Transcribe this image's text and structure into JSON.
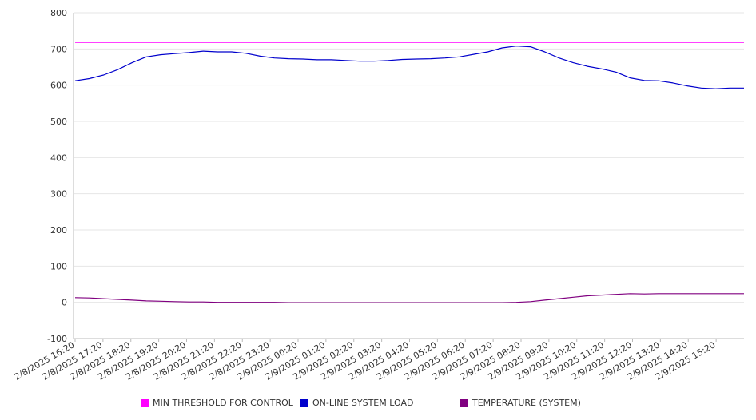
{
  "chart_data": {
    "type": "line",
    "title": "",
    "xlabel": "",
    "ylabel": "",
    "ylim": [
      -100,
      800
    ],
    "yticks": [
      -100,
      0,
      100,
      200,
      300,
      400,
      500,
      600,
      700,
      800
    ],
    "grid": "horizontal",
    "legend": "bottom",
    "x_tick_labels": [
      "2/8/2025 16:20",
      "2/8/2025 17:20",
      "2/8/2025 18:20",
      "2/8/2025 19:20",
      "2/8/2025 20:20",
      "2/8/2025 21:20",
      "2/8/2025 22:20",
      "2/8/2025 23:20",
      "2/9/2025 00:20",
      "2/9/2025 01:20",
      "2/9/2025 02:20",
      "2/9/2025 03:20",
      "2/9/2025 04:20",
      "2/9/2025 05:20",
      "2/9/2025 06:20",
      "2/9/2025 07:20",
      "2/9/2025 08:20",
      "2/9/2025 09:20",
      "2/9/2025 10:20",
      "2/9/2025 11:20",
      "2/9/2025 12:20",
      "2/9/2025 13:20",
      "2/9/2025 14:20",
      "2/9/2025 15:20"
    ],
    "x": [
      "2/8/2025 16:20",
      "2/8/2025 16:50",
      "2/8/2025 17:20",
      "2/8/2025 17:50",
      "2/8/2025 18:20",
      "2/8/2025 18:50",
      "2/8/2025 19:20",
      "2/8/2025 19:50",
      "2/8/2025 20:20",
      "2/8/2025 20:50",
      "2/8/2025 21:20",
      "2/8/2025 21:50",
      "2/8/2025 22:20",
      "2/8/2025 22:50",
      "2/8/2025 23:20",
      "2/8/2025 23:50",
      "2/9/2025 00:20",
      "2/9/2025 00:50",
      "2/9/2025 01:20",
      "2/9/2025 01:50",
      "2/9/2025 02:20",
      "2/9/2025 02:50",
      "2/9/2025 03:20",
      "2/9/2025 03:50",
      "2/9/2025 04:20",
      "2/9/2025 04:50",
      "2/9/2025 05:20",
      "2/9/2025 05:50",
      "2/9/2025 06:20",
      "2/9/2025 06:50",
      "2/9/2025 07:20",
      "2/9/2025 07:50",
      "2/9/2025 08:20",
      "2/9/2025 08:50",
      "2/9/2025 09:20",
      "2/9/2025 09:50",
      "2/9/2025 10:20",
      "2/9/2025 10:50",
      "2/9/2025 11:20",
      "2/9/2025 11:50",
      "2/9/2025 12:20",
      "2/9/2025 12:50",
      "2/9/2025 13:20",
      "2/9/2025 13:50",
      "2/9/2025 14:20",
      "2/9/2025 14:50",
      "2/9/2025 15:20",
      "2/9/2025 15:50"
    ],
    "series": [
      {
        "name": "MIN THRESHOLD FOR CONTROL",
        "color": "#ff00ff",
        "values": [
          718,
          718,
          718,
          718,
          718,
          718,
          718,
          718,
          718,
          718,
          718,
          718,
          718,
          718,
          718,
          718,
          718,
          718,
          718,
          718,
          718,
          718,
          718,
          718,
          718,
          718,
          718,
          718,
          718,
          718,
          718,
          718,
          718,
          718,
          718,
          718,
          718,
          718,
          718,
          718,
          718,
          718,
          718,
          718,
          718,
          718,
          718,
          718
        ]
      },
      {
        "name": "ON-LINE SYSTEM LOAD",
        "color": "#0000cc",
        "values": [
          612,
          618,
          628,
          643,
          662,
          678,
          684,
          687,
          690,
          694,
          692,
          692,
          688,
          680,
          675,
          673,
          672,
          670,
          670,
          668,
          666,
          666,
          668,
          671,
          672,
          673,
          675,
          678,
          685,
          692,
          703,
          708,
          706,
          692,
          675,
          662,
          652,
          645,
          636,
          620,
          613,
          612,
          606,
          598,
          592,
          590,
          592,
          592
        ]
      },
      {
        "name": "TEMPERATURE (SYSTEM)",
        "color": "#800080",
        "values": [
          13,
          12,
          10,
          8,
          6,
          4,
          3,
          2,
          1,
          1,
          0,
          0,
          0,
          0,
          0,
          -1,
          -1,
          -1,
          -1,
          -1,
          -1,
          -1,
          -1,
          -1,
          -1,
          -1,
          -1,
          -1,
          -1,
          -1,
          -1,
          0,
          2,
          6,
          10,
          14,
          18,
          20,
          22,
          24,
          23,
          24,
          24,
          24,
          24,
          24,
          24,
          24
        ]
      }
    ]
  }
}
